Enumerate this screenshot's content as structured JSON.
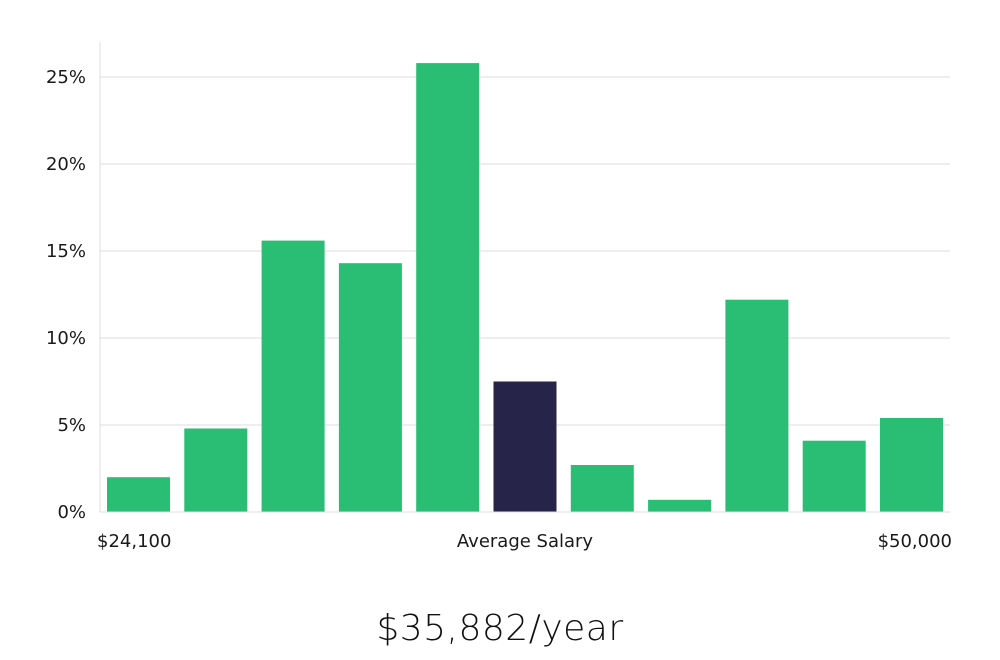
{
  "chart_data": {
    "type": "bar",
    "title": "",
    "xlabel": "",
    "ylabel": "",
    "ylim": [
      0,
      27
    ],
    "y_ticks": [
      0,
      5,
      10,
      15,
      20,
      25
    ],
    "y_tick_format": "%",
    "grid": true,
    "legend": "none",
    "values": [
      2.0,
      4.8,
      15.6,
      14.3,
      25.8,
      7.5,
      2.7,
      0.7,
      12.2,
      4.1,
      5.4
    ],
    "highlight_index": 5,
    "x_labels": {
      "left": "$24,100",
      "center": "Average Salary",
      "right": "$50,000"
    },
    "colors": {
      "bar": "#2abd74",
      "highlight": "#27244a",
      "grid": "#dddddd",
      "axis": "#dddddd"
    }
  },
  "average_salary": "$35,882/year"
}
